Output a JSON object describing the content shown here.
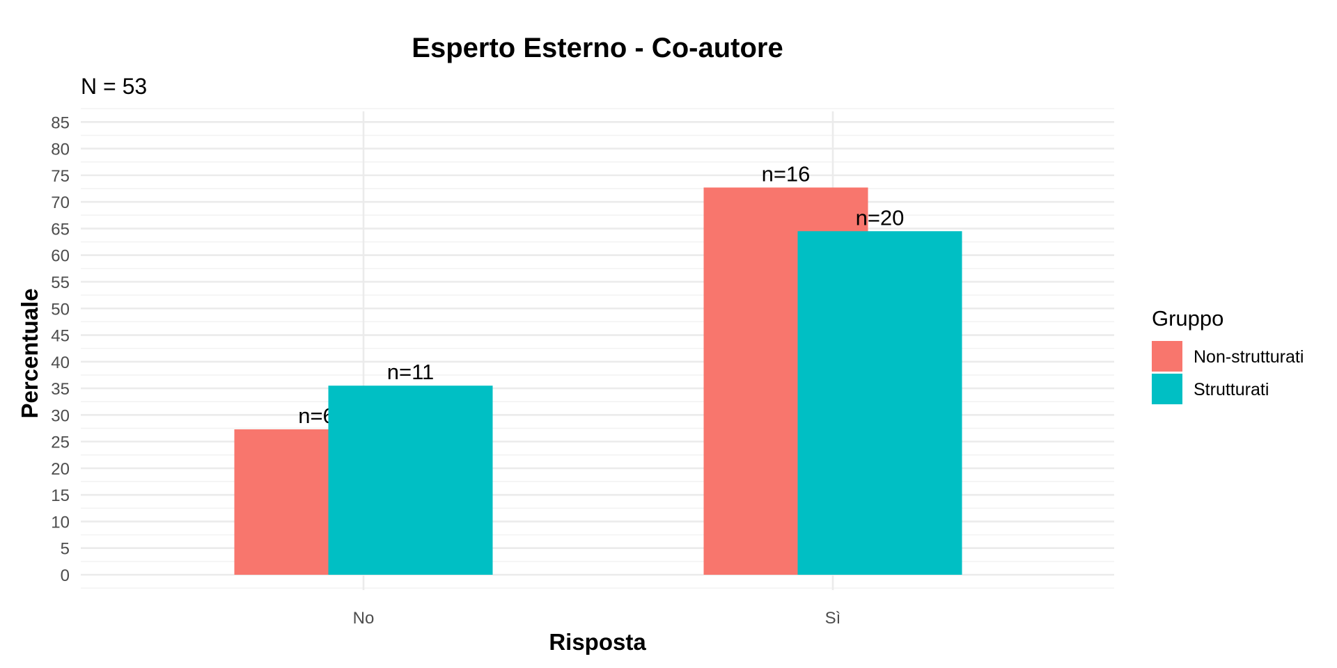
{
  "chart_data": {
    "type": "bar",
    "title": "Esperto Esterno - Co-autore",
    "subtitle": "N = 53",
    "xlabel": "Risposta",
    "ylabel": "Percentuale",
    "categories": [
      "No",
      "Sì"
    ],
    "ylim": [
      0,
      85
    ],
    "ytick_step": 5,
    "yticks": [
      "0",
      "5",
      "10",
      "15",
      "20",
      "25",
      "30",
      "35",
      "40",
      "45",
      "50",
      "55",
      "60",
      "65",
      "70",
      "75",
      "80",
      "85"
    ],
    "grid": true,
    "legend": {
      "title": "Gruppo",
      "placement": "right"
    },
    "series": [
      {
        "name": "Non-strutturati",
        "color": "#F8766D",
        "values": [
          27.3,
          72.7
        ],
        "labels": [
          "n=6",
          "n=16"
        ]
      },
      {
        "name": "Strutturati",
        "color": "#00BFC4",
        "values": [
          35.5,
          64.5
        ],
        "labels": [
          "n=11",
          "n=20"
        ]
      }
    ]
  }
}
